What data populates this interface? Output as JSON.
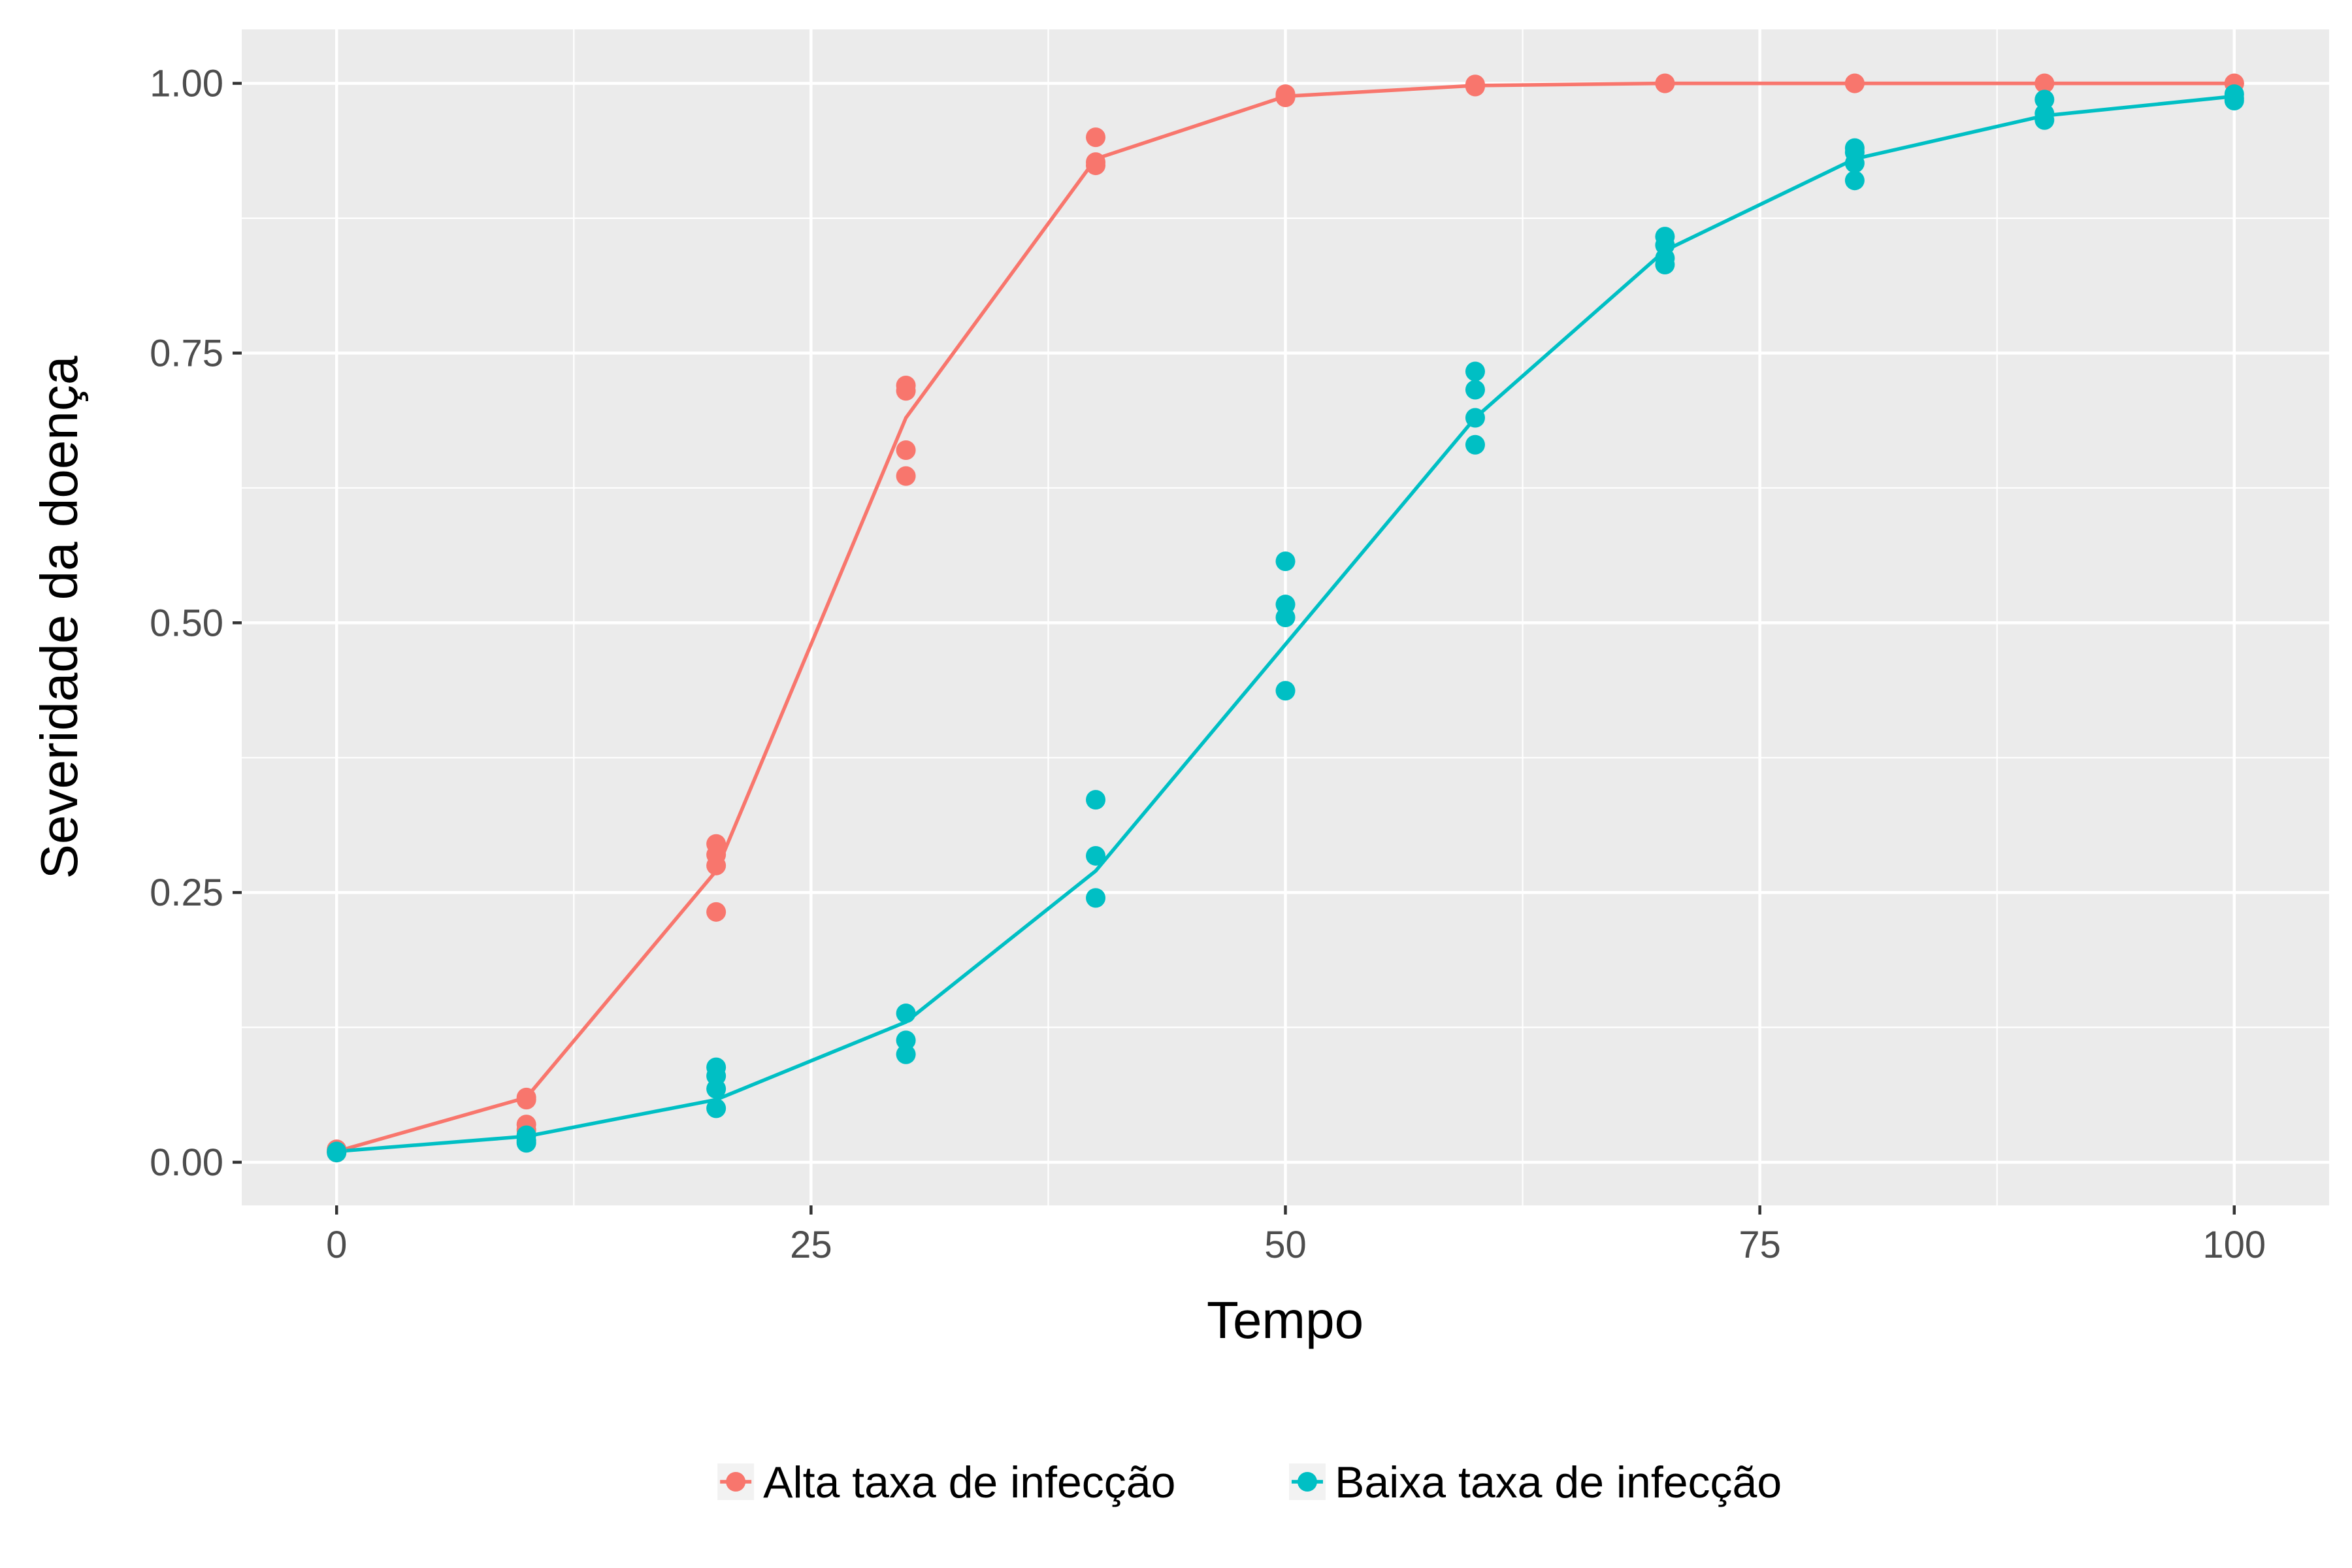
{
  "chart_data": {
    "type": "line",
    "title": "",
    "xlabel": "Tempo",
    "ylabel": "Severidade da doença",
    "xlim": [
      -5,
      105
    ],
    "ylim": [
      -0.04,
      1.05
    ],
    "x_ticks": [
      0,
      25,
      50,
      75,
      100
    ],
    "x_tick_labels": [
      "0",
      "25",
      "50",
      "75",
      "100"
    ],
    "y_ticks": [
      0,
      0.25,
      0.5,
      0.75,
      1.0
    ],
    "y_tick_labels": [
      "0.00",
      "0.25",
      "0.50",
      "0.75",
      "1.00"
    ],
    "grid": true,
    "legend_position": "bottom",
    "series": [
      {
        "name": "Alta taxa de infecção",
        "color": "#F8766D",
        "line_x": [
          0,
          10,
          20,
          30,
          40,
          50,
          60,
          70,
          80,
          90,
          100
        ],
        "line_y": [
          0.01,
          0.06,
          0.27,
          0.69,
          0.93,
          0.988,
          0.998,
          1.0,
          1.0,
          1.0,
          1.0
        ],
        "points": [
          [
            0,
            0.012
          ],
          [
            0,
            0.01
          ],
          [
            0,
            0.011
          ],
          [
            0,
            0.009
          ],
          [
            10,
            0.06
          ],
          [
            10,
            0.058
          ],
          [
            10,
            0.035
          ],
          [
            10,
            0.03
          ],
          [
            20,
            0.295
          ],
          [
            20,
            0.285
          ],
          [
            20,
            0.275
          ],
          [
            20,
            0.232
          ],
          [
            30,
            0.72
          ],
          [
            30,
            0.715
          ],
          [
            30,
            0.66
          ],
          [
            30,
            0.636
          ],
          [
            40,
            0.95
          ],
          [
            40,
            0.927
          ],
          [
            40,
            0.924
          ],
          [
            50,
            0.99
          ],
          [
            50,
            0.988
          ],
          [
            50,
            0.987
          ],
          [
            60,
            0.999
          ],
          [
            60,
            0.998
          ],
          [
            60,
            0.997
          ],
          [
            70,
            1.0
          ],
          [
            70,
            1.0
          ],
          [
            80,
            1.0
          ],
          [
            80,
            1.0
          ],
          [
            90,
            1.0
          ],
          [
            90,
            1.0
          ],
          [
            100,
            1.0
          ],
          [
            100,
            1.0
          ]
        ]
      },
      {
        "name": "Baixa taxa de infecção",
        "color": "#00BFC4",
        "line_x": [
          0,
          10,
          20,
          30,
          40,
          50,
          60,
          70,
          80,
          90,
          100
        ],
        "line_y": [
          0.01,
          0.024,
          0.058,
          0.13,
          0.27,
          0.48,
          0.69,
          0.845,
          0.93,
          0.97,
          0.988
        ],
        "points": [
          [
            0,
            0.01
          ],
          [
            0,
            0.009
          ],
          [
            10,
            0.025
          ],
          [
            10,
            0.02
          ],
          [
            10,
            0.018
          ],
          [
            20,
            0.088
          ],
          [
            20,
            0.08
          ],
          [
            20,
            0.068
          ],
          [
            20,
            0.05
          ],
          [
            30,
            0.138
          ],
          [
            30,
            0.113
          ],
          [
            30,
            0.1
          ],
          [
            40,
            0.336
          ],
          [
            40,
            0.284
          ],
          [
            40,
            0.245
          ],
          [
            50,
            0.557
          ],
          [
            50,
            0.517
          ],
          [
            50,
            0.505
          ],
          [
            50,
            0.437
          ],
          [
            60,
            0.733
          ],
          [
            60,
            0.716
          ],
          [
            60,
            0.69
          ],
          [
            60,
            0.665
          ],
          [
            70,
            0.858
          ],
          [
            70,
            0.85
          ],
          [
            70,
            0.838
          ],
          [
            70,
            0.832
          ],
          [
            80,
            0.94
          ],
          [
            80,
            0.936
          ],
          [
            80,
            0.926
          ],
          [
            80,
            0.91
          ],
          [
            90,
            0.985
          ],
          [
            90,
            0.972
          ],
          [
            90,
            0.966
          ],
          [
            100,
            0.99
          ],
          [
            100,
            0.986
          ],
          [
            100,
            0.984
          ]
        ]
      }
    ]
  }
}
